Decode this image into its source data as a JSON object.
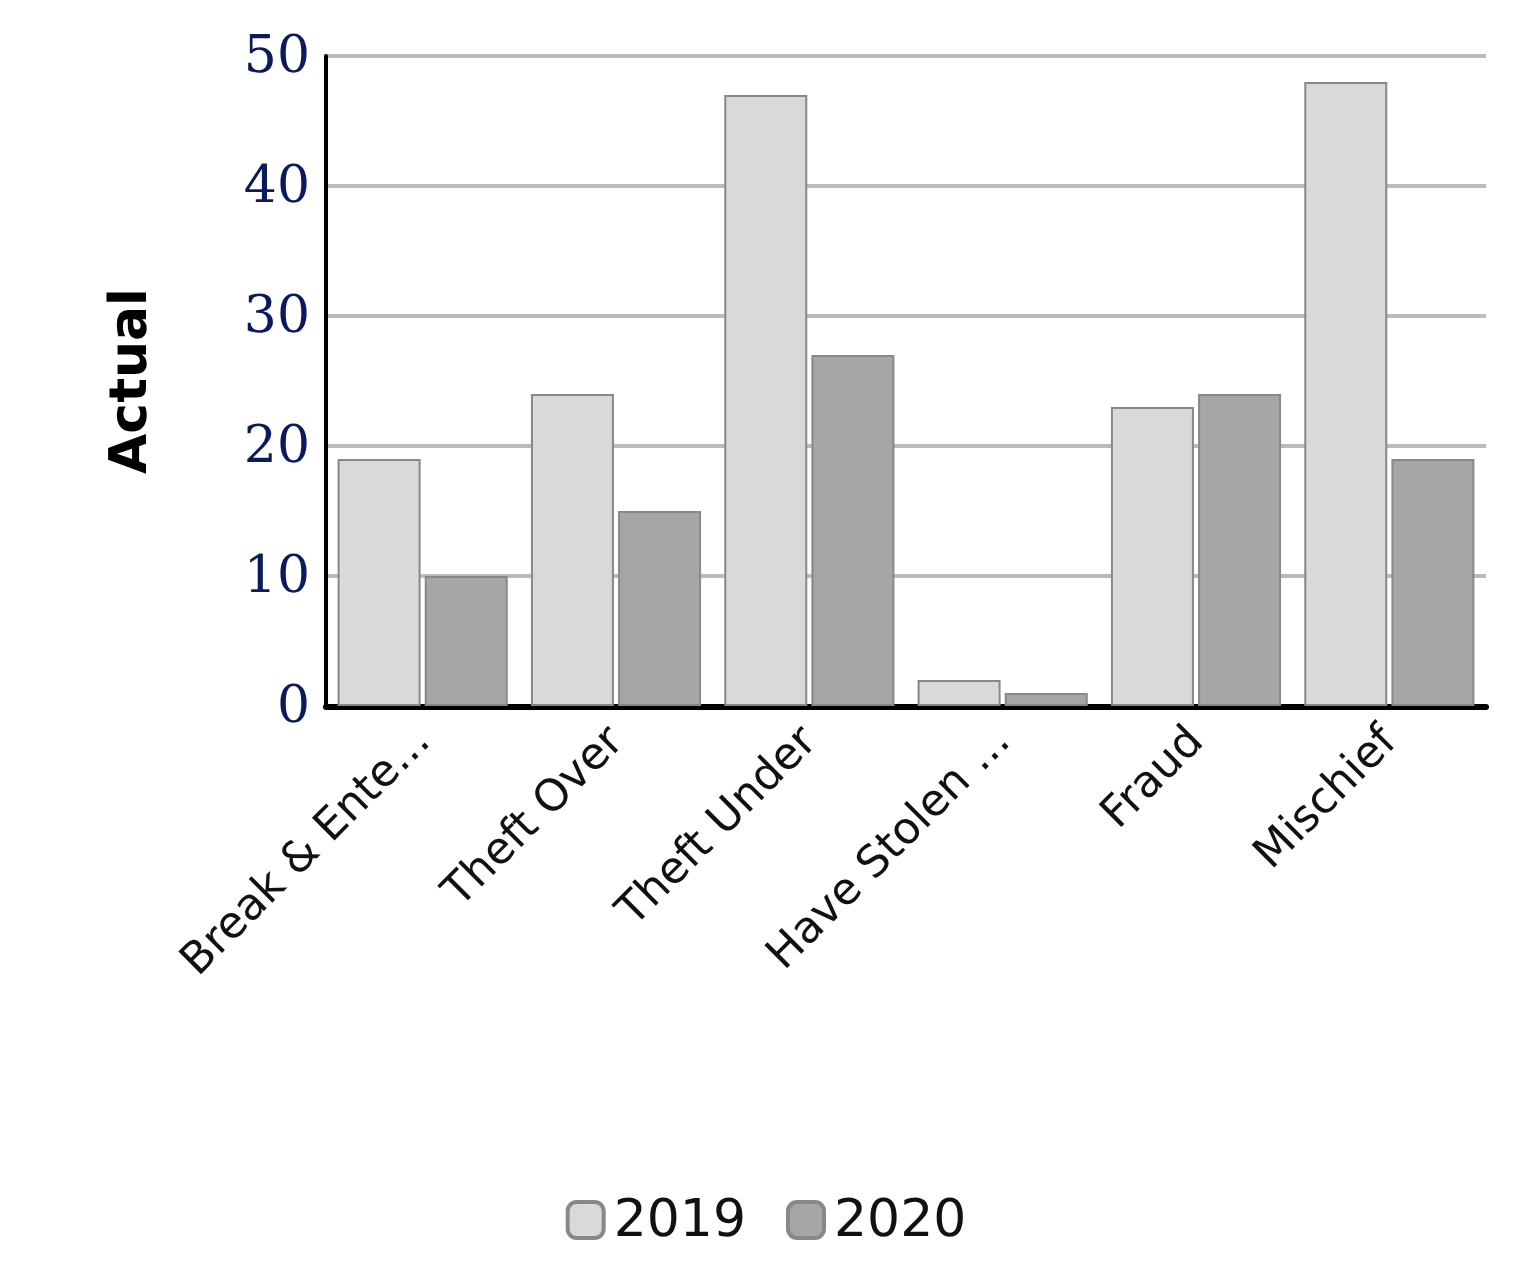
{
  "chart_data": {
    "type": "bar",
    "ylabel": "Actual",
    "categories": [
      "Break & Ente...",
      "Theft Over",
      "Theft Under",
      "Have Stolen ...",
      "Fraud",
      "Mischief"
    ],
    "series": [
      {
        "name": "2019",
        "color": "#d9d9d9",
        "values": [
          19,
          24,
          47,
          2,
          23,
          48
        ]
      },
      {
        "name": "2020",
        "color": "#a6a6a6",
        "values": [
          10,
          15,
          27,
          1,
          24,
          19
        ]
      }
    ],
    "ylim": [
      0,
      50
    ],
    "yticks": [
      0,
      10,
      20,
      30,
      40,
      50
    ],
    "grid": "y",
    "legend": "bottom"
  }
}
